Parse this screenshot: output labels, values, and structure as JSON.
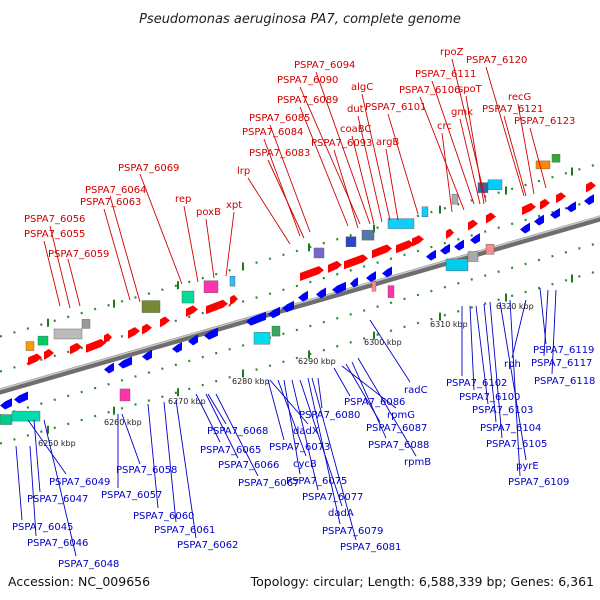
{
  "title": "Pseudomonas aeruginosa PA7, complete genome",
  "footer": {
    "accession": "Accession: NC_009656",
    "summary": "Topology: circular; Length: 6,588,339 bp; Genes: 6,361"
  },
  "scale_labels": [
    "6250 kbp",
    "6260 kbp",
    "6270 kbp",
    "6280 kbp",
    "6290 kbp",
    "6300 kbp",
    "6310 kbp",
    "6320 kbp"
  ],
  "colors": {
    "plus_strand": "#ff0000",
    "minus_strand": "#0000ff",
    "backbone": "#777777",
    "tick_green": "#1e7a1e",
    "upper_label": "#d00000",
    "lower_label": "#0000c8"
  },
  "upper_labels": [
    "PSPA7_6056",
    "PSPA7_6055",
    "PSPA7_6059",
    "PSPA7_6064",
    "PSPA7_6063",
    "PSPA7_6069",
    "rep",
    "poxB",
    "xpt",
    "lrp",
    "PSPA7_6083",
    "PSPA7_6084",
    "PSPA7_6085",
    "PSPA7_6089",
    "PSPA7_6090",
    "PSPA7_6094",
    "coaBC",
    "PSPA7_6093",
    "dut",
    "algC",
    "argB",
    "PSPA7_6101",
    "crc",
    "PSPA7_6106",
    "PSPA7_6111",
    "rpoZ",
    "gmk",
    "spoT",
    "PSPA7_6120",
    "recG",
    "PSPA7_6121",
    "PSPA7_6123"
  ],
  "lower_labels": [
    "PSPA7_6049",
    "PSPA7_6047",
    "PSPA7_6045",
    "PSPA7_6046",
    "PSPA7_6048",
    "PSPA7_6058",
    "PSPA7_6057",
    "PSPA7_6060",
    "PSPA7_6061",
    "PSPA7_6062",
    "PSPA7_6068",
    "PSPA7_6065",
    "PSPA7_6066",
    "PSPA7_6067",
    "dadX",
    "PSPA7_6073",
    "cycB",
    "PSPA7_6075",
    "PSPA7_6077",
    "dadA",
    "PSPA7_6079",
    "PSPA7_6081",
    "PSPA7_6080",
    "PSPA7_6086",
    "rpmG",
    "PSPA7_6087",
    "PSPA7_6088",
    "rpmB",
    "radC",
    "PSPA7_6102",
    "PSPA7_6100",
    "PSPA7_6103",
    "PSPA7_6104",
    "PSPA7_6105",
    "pyrE",
    "PSPA7_6109",
    "rph",
    "PSPA7_6119",
    "PSPA7_6117",
    "PSPA7_6118"
  ]
}
